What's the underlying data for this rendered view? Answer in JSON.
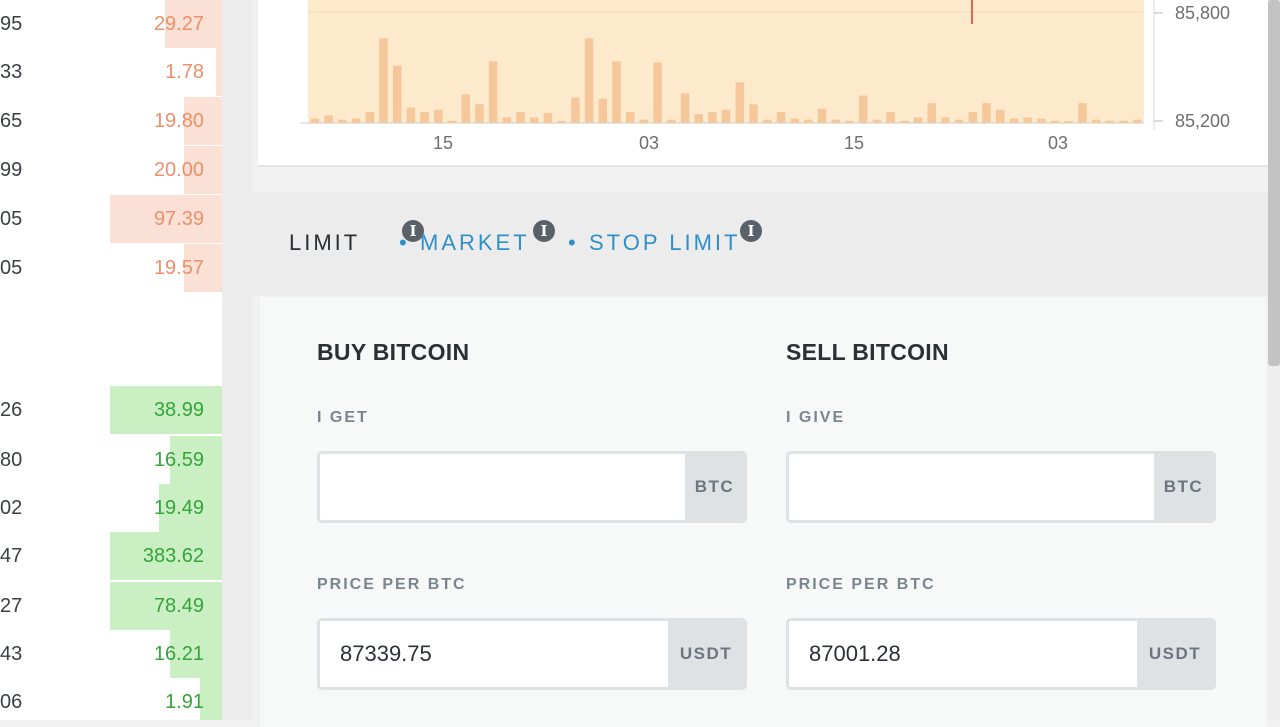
{
  "orderbook": {
    "asks": [
      {
        "price": "95",
        "amount": "29.27",
        "depth": 0.51
      },
      {
        "price": "33",
        "amount": "1.78",
        "depth": 0.05
      },
      {
        "price": "65",
        "amount": "19.80",
        "depth": 0.34
      },
      {
        "price": "99",
        "amount": "20.00",
        "depth": 0.34
      },
      {
        "price": "05",
        "amount": "97.39",
        "depth": 1.0
      },
      {
        "price": "05",
        "amount": "19.57",
        "depth": 0.34
      }
    ],
    "bids": [
      {
        "price": "26",
        "amount": "38.99",
        "depth": 1.0
      },
      {
        "price": "80",
        "amount": "16.59",
        "depth": 0.46
      },
      {
        "price": "02",
        "amount": "19.49",
        "depth": 0.56
      },
      {
        "price": "47",
        "amount": "383.62",
        "depth": 1.0
      },
      {
        "price": "27",
        "amount": "78.49",
        "depth": 1.0
      },
      {
        "price": "43",
        "amount": "16.21",
        "depth": 0.46
      },
      {
        "price": "06",
        "amount": "1.91",
        "depth": 0.2
      }
    ],
    "colors": {
      "ask_bar": "#fbe0d6",
      "ask_text": "#ee8f6a",
      "bid_bar": "#c9efc3",
      "bid_text": "#34a538"
    }
  },
  "chart": {
    "x_ticks": [
      "15",
      "03",
      "15",
      "03"
    ],
    "y_ticks": [
      "85,800",
      "85,200"
    ],
    "area_color": "#fde9cc",
    "bar_color": "#f6c79b",
    "candle_color": "#e2694c"
  },
  "chart_data": {
    "type": "bar",
    "ylim": [
      85200,
      85800
    ],
    "x_tick_labels": [
      "15",
      "03",
      "15",
      "03"
    ],
    "y_tick_labels": [
      "85,800",
      "85,200"
    ],
    "volume": [
      0.04,
      0.07,
      0.03,
      0.04,
      0.1,
      0.77,
      0.52,
      0.14,
      0.1,
      0.12,
      0.02,
      0.26,
      0.17,
      0.56,
      0.05,
      0.1,
      0.05,
      0.09,
      0.02,
      0.23,
      0.77,
      0.22,
      0.56,
      0.1,
      0.03,
      0.55,
      0.03,
      0.27,
      0.08,
      0.1,
      0.12,
      0.37,
      0.17,
      0.03,
      0.1,
      0.04,
      0.03,
      0.13,
      0.03,
      0.02,
      0.25,
      0.03,
      0.1,
      0.02,
      0.05,
      0.18,
      0.05,
      0.03,
      0.1,
      0.18,
      0.12,
      0.04,
      0.05,
      0.04,
      0.02,
      0.01,
      0.18,
      0.03,
      0.02,
      0.02,
      0.03
    ]
  },
  "tabs": [
    {
      "label": "LIMIT",
      "active": true
    },
    {
      "label": "MARKET",
      "active": false
    },
    {
      "label": "STOP LIMIT",
      "active": false
    }
  ],
  "tab_separator": "•",
  "info_glyph": "i",
  "buy": {
    "title": "BUY BITCOIN",
    "amount_label": "I GET",
    "amount_value": "",
    "amount_unit": "BTC",
    "price_label": "PRICE PER BTC",
    "price_value": "87339.75",
    "price_unit": "USDT"
  },
  "sell": {
    "title": "SELL BITCOIN",
    "amount_label": "I GIVE",
    "amount_value": "",
    "amount_unit": "BTC",
    "price_label": "PRICE PER BTC",
    "price_value": "87001.28",
    "price_unit": "USDT"
  },
  "theme": {
    "tab_active": "#2b2f33",
    "tab_link": "#2f8fc9"
  }
}
